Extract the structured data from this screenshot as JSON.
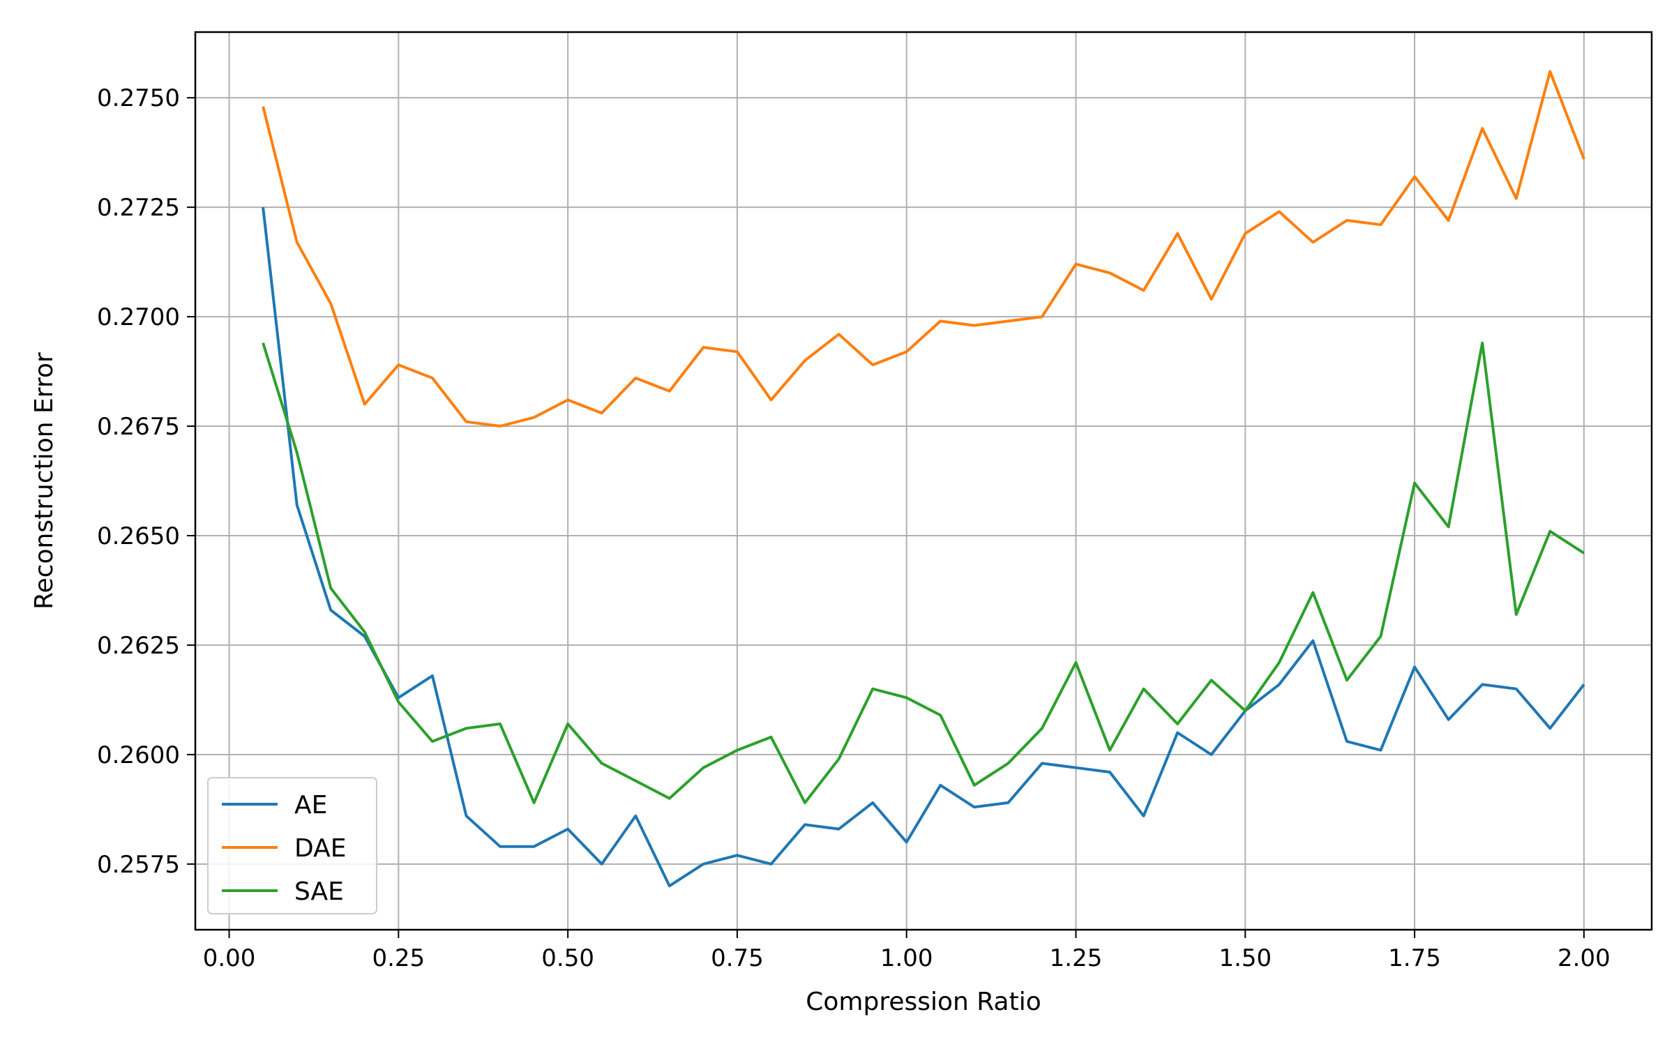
{
  "chart_data": {
    "type": "line",
    "title": "",
    "xlabel": "Compression Ratio",
    "ylabel": "Reconstruction Error",
    "xlim": [
      -0.05,
      2.1
    ],
    "ylim": [
      0.256,
      0.2765
    ],
    "grid": true,
    "legend_position": "lower-left",
    "x_ticks": [
      "0.00",
      "0.25",
      "0.50",
      "0.75",
      "1.00",
      "1.25",
      "1.50",
      "1.75",
      "2.00"
    ],
    "y_ticks": [
      "0.2575",
      "0.2600",
      "0.2625",
      "0.2650",
      "0.2675",
      "0.2700",
      "0.2725",
      "0.2750"
    ],
    "x": [
      0.05,
      0.1,
      0.15,
      0.2,
      0.25,
      0.3,
      0.35,
      0.4,
      0.45,
      0.5,
      0.55,
      0.6,
      0.65,
      0.7,
      0.75,
      0.8,
      0.85,
      0.9,
      0.95,
      1.0,
      1.05,
      1.1,
      1.15,
      1.2,
      1.25,
      1.3,
      1.35,
      1.4,
      1.45,
      1.5,
      1.55,
      1.6,
      1.65,
      1.7,
      1.75,
      1.8,
      1.85,
      1.9,
      1.95,
      2.0
    ],
    "series": [
      {
        "name": "AE",
        "color": "#1f77b4",
        "values": [
          0.2725,
          0.2657,
          0.2633,
          0.2627,
          0.2613,
          0.2618,
          0.2586,
          0.2579,
          0.2579,
          0.2583,
          0.2575,
          0.2586,
          0.257,
          0.2575,
          0.2577,
          0.2575,
          0.2584,
          0.2583,
          0.2589,
          0.258,
          0.2593,
          0.2588,
          0.2589,
          0.2598,
          0.2597,
          0.2596,
          0.2586,
          0.2605,
          0.26,
          0.261,
          0.2616,
          0.2626,
          0.2603,
          0.2601,
          0.262,
          0.2608,
          0.2616,
          0.2615,
          0.2606,
          0.2616
        ]
      },
      {
        "name": "DAE",
        "color": "#ff7f0e",
        "values": [
          0.2748,
          0.2717,
          0.2703,
          0.268,
          0.2689,
          0.2686,
          0.2676,
          0.2675,
          0.2677,
          0.2681,
          0.2678,
          0.2686,
          0.2683,
          0.2693,
          0.2692,
          0.2681,
          0.269,
          0.2696,
          0.2689,
          0.2692,
          0.2699,
          0.2698,
          0.2699,
          0.27,
          0.2712,
          0.271,
          0.2706,
          0.2719,
          0.2704,
          0.2719,
          0.2724,
          0.2717,
          0.2722,
          0.2721,
          0.2732,
          0.2722,
          0.2743,
          0.2727,
          0.2756,
          0.2736
        ]
      },
      {
        "name": "SAE",
        "color": "#2ca02c",
        "values": [
          0.2694,
          0.2669,
          0.2638,
          0.2628,
          0.2612,
          0.2603,
          0.2606,
          0.2607,
          0.2589,
          0.2607,
          0.2598,
          0.2594,
          0.259,
          0.2597,
          0.2601,
          0.2604,
          0.2589,
          0.2599,
          0.2615,
          0.2613,
          0.2609,
          0.2593,
          0.2598,
          0.2606,
          0.2621,
          0.2601,
          0.2615,
          0.2607,
          0.2617,
          0.261,
          0.2621,
          0.2637,
          0.2617,
          0.2627,
          0.2662,
          0.2652,
          0.2694,
          0.2632,
          0.2651,
          0.2646
        ]
      }
    ]
  }
}
